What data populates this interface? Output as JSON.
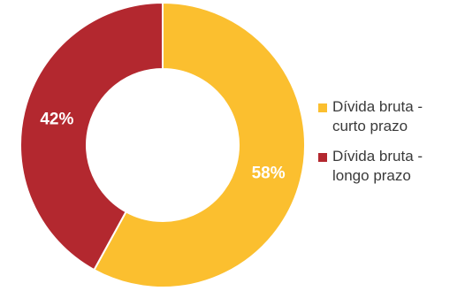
{
  "chart_data": {
    "type": "pie",
    "donut": true,
    "title": "",
    "slices": [
      {
        "label": "Dívida bruta -\ncurto prazo",
        "value": 58,
        "display": "58%",
        "color": "#fbbf2f"
      },
      {
        "label": "Dívida bruta -\nlongo prazo",
        "value": 42,
        "display": "42%",
        "color": "#b3282f"
      }
    ],
    "start_angle": "12 o'clock",
    "direction": "clockwise",
    "legend_position": "right"
  }
}
